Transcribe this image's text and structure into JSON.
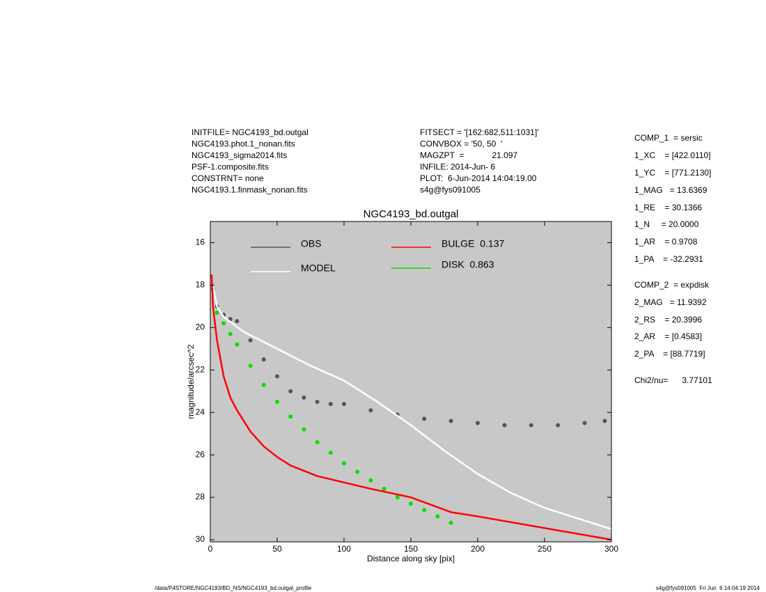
{
  "chart_data": {
    "type": "scatter",
    "title": "NGC4193_bd.outgal",
    "x_label": "Distance along sky [pix]",
    "y_label": "magnitude/arcsec^2",
    "xlim": [
      0,
      300
    ],
    "xticks": [
      0,
      50,
      100,
      150,
      200,
      250,
      300
    ],
    "ylim": [
      15,
      30.1
    ],
    "yticks": [
      16,
      18,
      20,
      22,
      24,
      26,
      28,
      30
    ],
    "y_inverted": true,
    "background": "#c8c8c8",
    "series": [
      {
        "name": "OBS",
        "color": "#555555",
        "style": "points",
        "x": [
          2,
          5,
          10,
          15,
          20,
          30,
          40,
          50,
          60,
          70,
          80,
          90,
          100,
          120,
          140,
          160,
          180,
          200,
          220,
          240,
          260,
          280,
          295
        ],
        "values": [
          18.2,
          19.0,
          19.4,
          19.6,
          19.7,
          20.6,
          21.5,
          22.3,
          23.0,
          23.3,
          23.5,
          23.6,
          23.6,
          23.9,
          24.1,
          24.3,
          24.4,
          24.5,
          24.6,
          24.6,
          24.6,
          24.5,
          24.4
        ]
      },
      {
        "name": "MODEL",
        "color": "#ffffff",
        "style": "line",
        "x": [
          2,
          5,
          10,
          25,
          50,
          75,
          100,
          125,
          150,
          175,
          200,
          225,
          250,
          275,
          300
        ],
        "values": [
          18.0,
          19.0,
          19.5,
          20.2,
          21.0,
          21.8,
          22.5,
          23.5,
          24.6,
          25.8,
          26.9,
          27.8,
          28.5,
          29.0,
          29.5
        ]
      },
      {
        "name": "BULGE  0.137",
        "color": "#ff0000",
        "style": "line",
        "x": [
          1,
          2,
          5,
          10,
          15,
          20,
          30,
          40,
          50,
          60,
          80,
          100,
          120,
          150,
          180,
          200,
          250,
          300
        ],
        "values": [
          17.5,
          19.0,
          20.6,
          22.3,
          23.3,
          23.9,
          24.9,
          25.6,
          26.1,
          26.5,
          27.0,
          27.3,
          27.6,
          28.0,
          28.7,
          28.9,
          29.45,
          30.0
        ]
      },
      {
        "name": "DISK  0.863",
        "color": "#00e000",
        "style": "points",
        "x": [
          5,
          10,
          15,
          20,
          30,
          40,
          50,
          60,
          70,
          80,
          90,
          100,
          110,
          120,
          130,
          140,
          150,
          160,
          170,
          180
        ],
        "values": [
          19.3,
          19.8,
          20.3,
          20.8,
          21.8,
          22.7,
          23.5,
          24.2,
          24.8,
          25.4,
          25.9,
          26.4,
          26.8,
          27.2,
          27.6,
          28.0,
          28.3,
          28.6,
          28.9,
          29.2
        ]
      }
    ],
    "annotations": {
      "header_left": [
        "INITFILE= NGC4193_bd.outgal",
        "NGC4193.phot.1_nonan.fits",
        "NGC4193_sigma2014.fits",
        "PSF-1.composite.fits",
        "CONSTRNT= none",
        "NGC4193.1.finmask_nonan.fits"
      ],
      "header_middle": [
        "FITSECT = '[162:682,511:1031]'",
        "CONVBOX = '50, 50  '",
        "MAGZPT  =            21.097",
        "INFILE: 2014-Jun- 6",
        "PLOT:  6-Jun-2014 14:04:19.00",
        "s4g@fys091005"
      ],
      "parameters": [
        "COMP_1  = sersic",
        "1_XC    = [422.0110]",
        "1_YC    = [771.2130]",
        "1_MAG   = 13.6369",
        "1_RE    = 30.1366",
        "1_N     = 20.0000",
        "1_AR    = 0.9708",
        "1_PA    = -32.2931",
        "COMP_2  = expdisk",
        "2_MAG   = 11.9392",
        "2_RS    = 20.3996",
        "2_AR    = [0.4583]",
        "2_PA    = [88.7719]",
        "Chi2/nu=      3.77101"
      ],
      "footer_left": "/data/P4STORE/NGC4193/BD_NS/NGC4193_bd.outgal_profile",
      "footer_right": "s4g@fys091005  Fri Jun  6 14:04:19 2014"
    }
  }
}
